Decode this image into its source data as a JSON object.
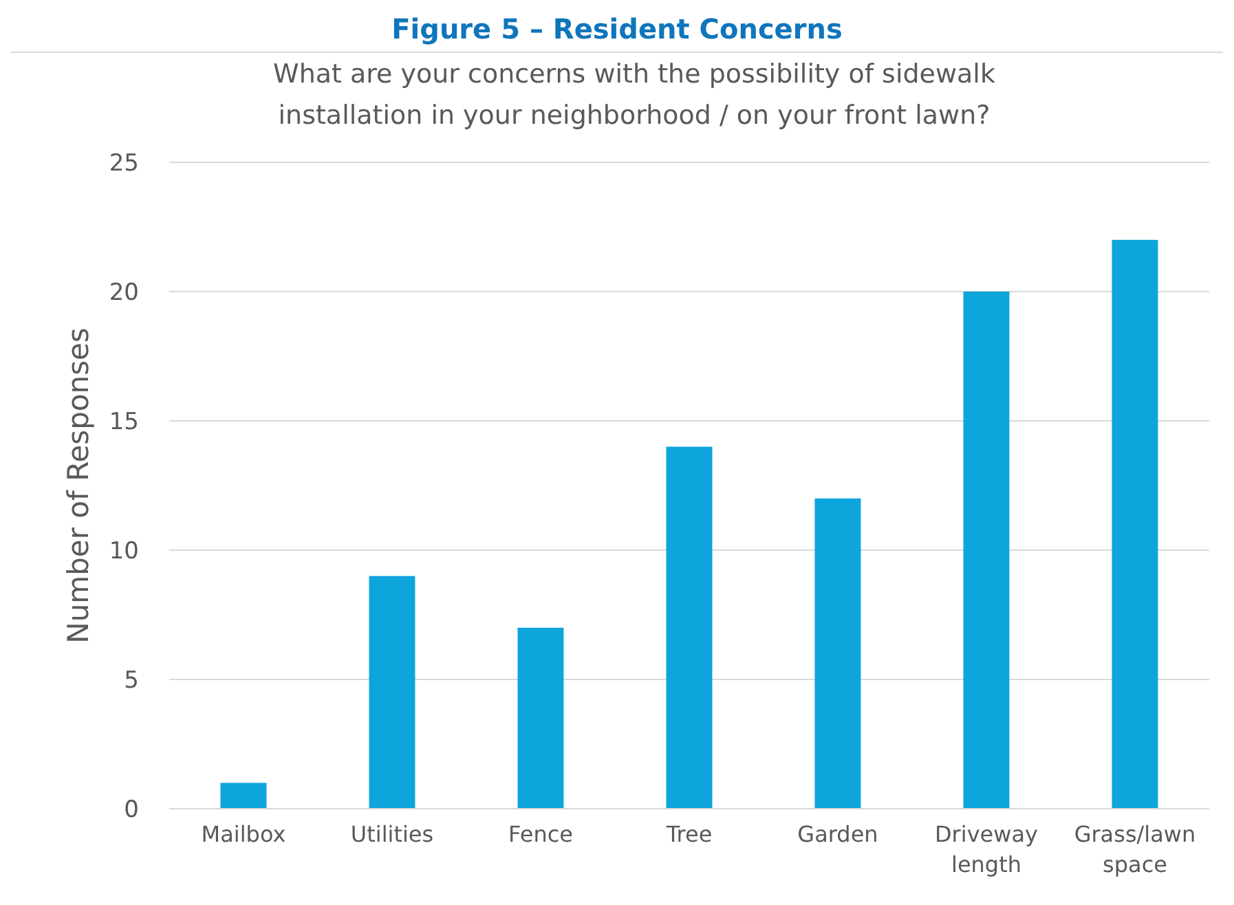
{
  "chart_data": {
    "type": "bar",
    "title": "Figure 5 – Resident Concerns",
    "subtitle": "What are your concerns with the possibility of sidewalk installation in your neighborhood / on your front lawn?",
    "ylabel": "Number of Responses",
    "categories": [
      "Mailbox",
      "Utilities",
      "Fence",
      "Tree",
      "Garden",
      "Driveway length",
      "Grass/lawn space"
    ],
    "values": [
      1,
      9,
      7,
      14,
      12,
      20,
      22
    ],
    "color": "#0ea5dc",
    "ylim": [
      0,
      25
    ],
    "yticks": [
      0,
      5,
      10,
      15,
      20,
      25
    ],
    "grid": "y"
  }
}
